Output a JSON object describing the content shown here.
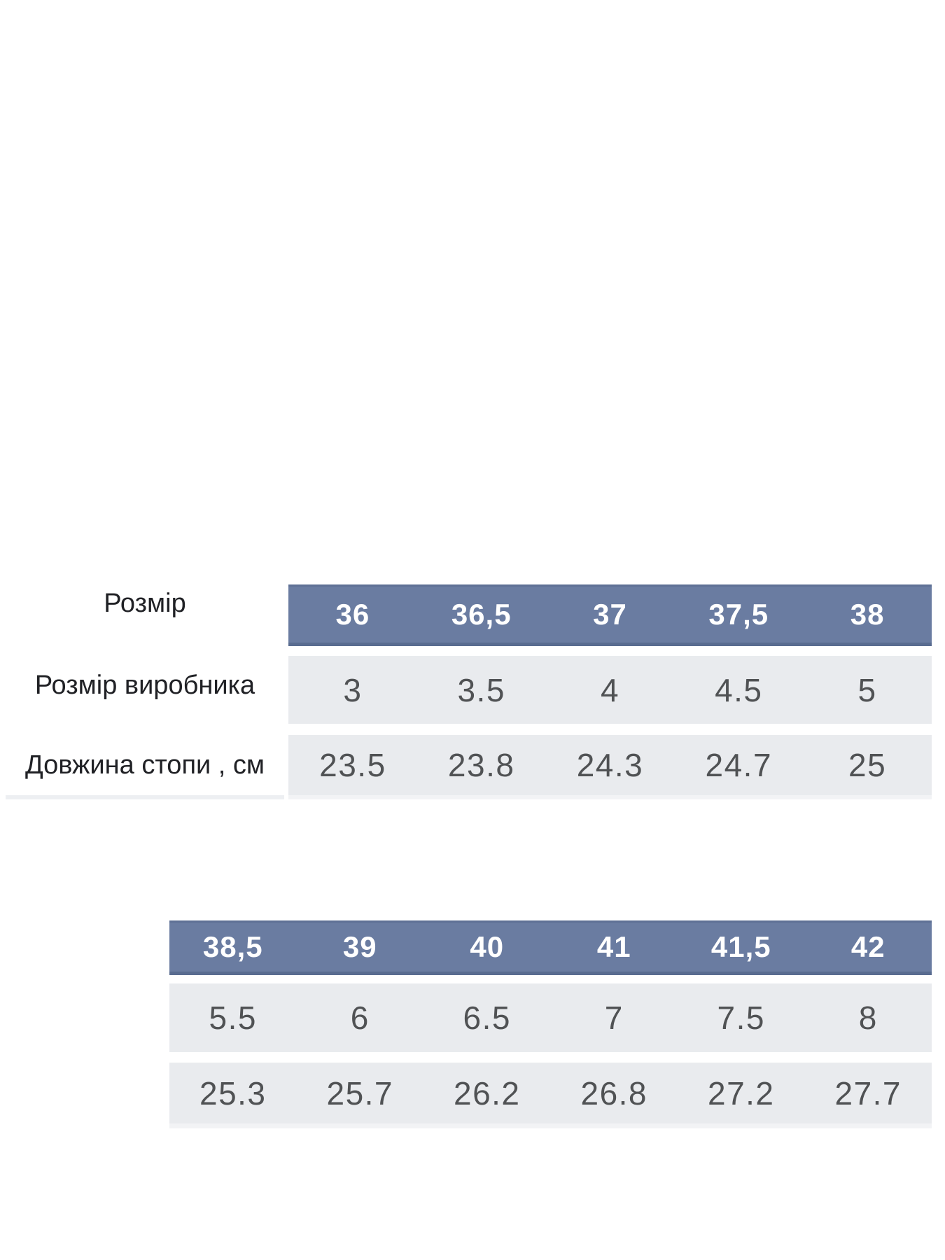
{
  "colors": {
    "header_bg": "#6a7ca1",
    "header_border_top": "#5e7095",
    "header_border_bottom": "#596c90",
    "row_bg": "#e9ebee",
    "row_border_bottom": "#f2f3f5",
    "header_text": "#ffffff",
    "value_text": "#505254",
    "label_text": "#202125",
    "page_bg": "#ffffff"
  },
  "table1": {
    "row_labels": [
      "Розмір",
      "Розмір виробника",
      "Довжина стопи , см"
    ],
    "sizes": [
      "36",
      "36,5",
      "37",
      "37,5",
      "38"
    ],
    "manufacturer_sizes": [
      "3",
      "3.5",
      "4",
      "4.5",
      "5"
    ],
    "foot_lengths_cm": [
      "23.5",
      "23.8",
      "24.3",
      "24.7",
      "25"
    ]
  },
  "table2": {
    "sizes": [
      "38,5",
      "39",
      "40",
      "41",
      "41,5",
      "42"
    ],
    "manufacturer_sizes": [
      "5.5",
      "6",
      "6.5",
      "7",
      "7.5",
      "8"
    ],
    "foot_lengths_cm": [
      "25.3",
      "25.7",
      "26.2",
      "26.8",
      "27.2",
      "27.7"
    ]
  },
  "chart_data": [
    {
      "type": "table",
      "title": "Розмір (size chart, EU 36–38)",
      "header_label": "Розмір",
      "columns": [
        "36",
        "36,5",
        "37",
        "37,5",
        "38"
      ],
      "rows": [
        {
          "label": "Розмір виробника",
          "values": [
            3,
            3.5,
            4,
            4.5,
            5
          ]
        },
        {
          "label": "Довжина стопи , см",
          "values": [
            23.5,
            23.8,
            24.3,
            24.7,
            25
          ]
        }
      ]
    },
    {
      "type": "table",
      "title": "Size chart continuation (EU 38,5–42)",
      "columns": [
        "38,5",
        "39",
        "40",
        "41",
        "41,5",
        "42"
      ],
      "rows": [
        {
          "label": "Розмір виробника",
          "values": [
            5.5,
            6,
            6.5,
            7,
            7.5,
            8
          ]
        },
        {
          "label": "Довжина стопи , см",
          "values": [
            25.3,
            25.7,
            26.2,
            26.8,
            27.2,
            27.7
          ]
        }
      ]
    }
  ]
}
